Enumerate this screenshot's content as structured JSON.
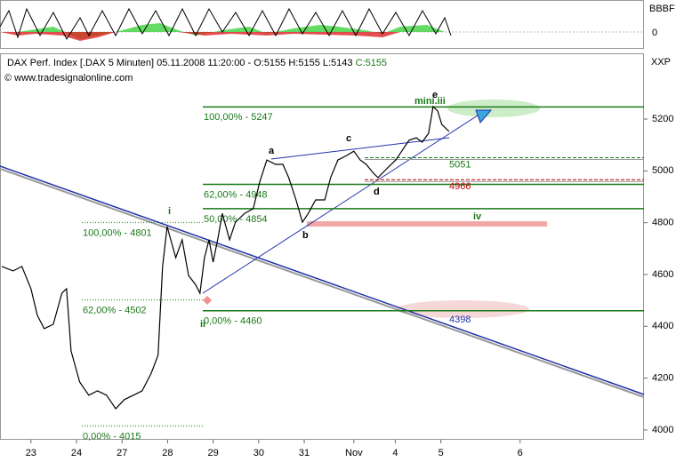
{
  "chart_data": {
    "type": "line",
    "title": "DAX Perf. Index [.DAX  5 Minuten] 05.11.2008 11:20:00 - O:5155 H:5155 L:5143",
    "close_label": "C:5155",
    "source": "© www.tradesignalonline.com",
    "axis_code": "XXP",
    "indicator_labels": [
      "BBBF",
      "0"
    ],
    "color": "#000000",
    "x": [
      -0.64,
      -0.39,
      -0.2,
      0,
      0.14,
      0.29,
      0.49,
      0.68,
      0.78,
      0.88,
      1.07,
      1.27,
      1.46,
      1.66,
      1.86,
      2.05,
      2.25,
      2.44,
      2.64,
      2.79,
      2.89,
      2.99,
      3.07,
      3.18,
      3.32,
      3.46,
      3.61,
      3.71,
      3.81,
      3.91,
      4.0,
      4.1,
      4.2,
      4.36,
      4.49,
      4.69,
      4.88,
      5.02,
      5.18,
      5.37,
      5.53,
      5.66,
      5.82,
      5.96,
      6.09,
      6.25,
      6.45,
      6.58,
      6.74,
      6.93,
      7.09,
      7.23,
      7.36,
      7.52,
      7.62,
      7.81,
      8.01,
      8.14,
      8.3,
      8.46,
      8.59,
      8.73,
      8.83,
      8.93,
      9.02,
      9.18
    ],
    "values": [
      4631,
      4614,
      4631,
      4545,
      4442,
      4391,
      4408,
      4528,
      4545,
      4305,
      4185,
      4134,
      4151,
      4134,
      4082,
      4117,
      4134,
      4151,
      4219,
      4288,
      4631,
      4785,
      4734,
      4665,
      4734,
      4596,
      4562,
      4528,
      4665,
      4734,
      4648,
      4734,
      4836,
      4734,
      4802,
      4836,
      4854,
      4956,
      5042,
      5025,
      5025,
      4974,
      4888,
      4802,
      4836,
      4888,
      4888,
      4974,
      5042,
      5059,
      5076,
      5042,
      5025,
      4991,
      4974,
      5008,
      5042,
      5076,
      5118,
      5128,
      5111,
      5145,
      5248,
      5231,
      5179,
      5152
    ],
    "xlim": [
      -0.68,
      13.46
    ],
    "ylim": [
      3962,
      5447
    ],
    "yticks": [
      4000,
      4200,
      4400,
      4600,
      4800,
      5000,
      5200
    ],
    "xticks": [
      {
        "value": 0,
        "label": "23"
      },
      {
        "value": 1,
        "label": "24"
      },
      {
        "value": 2,
        "label": "27"
      },
      {
        "value": 3,
        "label": "28"
      },
      {
        "value": 4,
        "label": "29"
      },
      {
        "value": 5,
        "label": "30"
      },
      {
        "value": 6,
        "label": "31"
      },
      {
        "value": 7.09,
        "label": "Nov"
      },
      {
        "value": 8,
        "label": "4"
      },
      {
        "value": 9,
        "label": "5"
      },
      {
        "value": 10.74,
        "label": "6"
      }
    ],
    "fib_levels": [
      {
        "value": 5247,
        "label": "100,00% - 5247",
        "style": "solid"
      },
      {
        "value": 4948,
        "label": "62,00% - 4948",
        "style": "solid"
      },
      {
        "value": 4854,
        "label": "50,00% - 4854",
        "style": "solid"
      },
      {
        "value": 4460,
        "label": "0,00% - 4460",
        "style": "solid"
      },
      {
        "value": 4801,
        "label": "100,00% - 4801",
        "style": "dotted"
      },
      {
        "value": 4502,
        "label": "62,00% - 4502",
        "style": "dotted"
      },
      {
        "value": 4015,
        "label": "0,00% - 4015",
        "style": "dotted"
      }
    ],
    "levels": [
      {
        "value": 5051,
        "label": "5051",
        "color": "#1a7a1a"
      },
      {
        "value": 4966,
        "label": "4966",
        "color": "#c00000"
      }
    ],
    "annotations": [
      "a",
      "b",
      "c",
      "d",
      "e",
      "i",
      "ii",
      "iv",
      "mini.iii",
      "4398"
    ]
  }
}
